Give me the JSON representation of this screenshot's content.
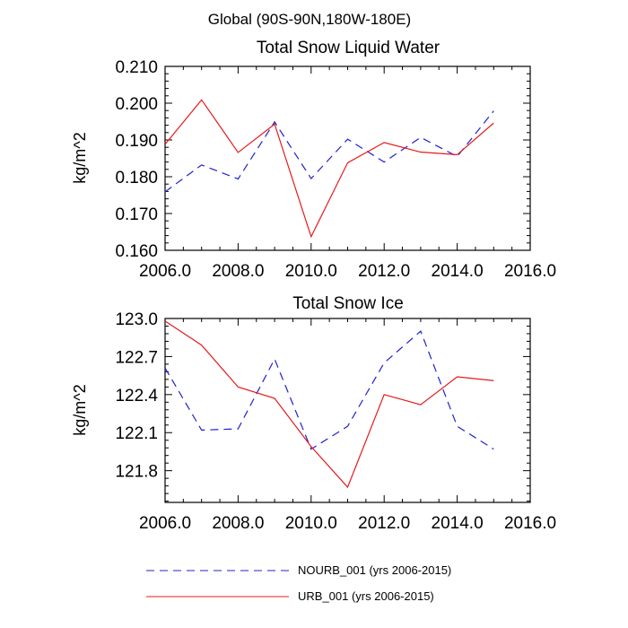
{
  "figure_title": "Global (90S-90N,180W-180E)",
  "colors": {
    "nourb": "#2020d0",
    "urb": "#e41a1c",
    "axis": "#000000"
  },
  "legend": [
    {
      "name": "NOURB_001 (yrs 2006-2015)",
      "style": "dashed",
      "color": "#2020d0"
    },
    {
      "name": "URB_001 (yrs 2006-2015)",
      "style": "solid",
      "color": "#e41a1c"
    }
  ],
  "chart_data": [
    {
      "type": "line",
      "title": "Total Snow Liquid Water",
      "xlabel": "",
      "ylabel": "kg/m^2",
      "xlim": [
        2006,
        2016
      ],
      "ylim": [
        0.16,
        0.21
      ],
      "xticks": [
        2006,
        2008,
        2010,
        2012,
        2014,
        2016
      ],
      "xtick_labels": [
        "2006.0",
        "2008.0",
        "2010.0",
        "2012.0",
        "2014.0",
        "2016.0"
      ],
      "yticks": [
        0.16,
        0.17,
        0.18,
        0.19,
        0.2,
        0.21
      ],
      "ytick_labels": [
        "0.160",
        "0.170",
        "0.180",
        "0.190",
        "0.200",
        "0.210"
      ],
      "x": [
        2006,
        2007,
        2008,
        2009,
        2010,
        2011,
        2012,
        2013,
        2014,
        2015
      ],
      "series": [
        {
          "name": "NOURB_001 (yrs 2006-2015)",
          "style": "dashed",
          "color": "#2020d0",
          "values": [
            0.1759,
            0.1832,
            0.1794,
            0.1949,
            0.1795,
            0.1902,
            0.184,
            0.1907,
            0.1855,
            0.1979
          ]
        },
        {
          "name": "URB_001 (yrs 2006-2015)",
          "style": "solid",
          "color": "#e41a1c",
          "values": [
            0.1888,
            0.2009,
            0.1866,
            0.1943,
            0.1637,
            0.1838,
            0.1893,
            0.1867,
            0.186,
            0.1946
          ]
        }
      ]
    },
    {
      "type": "line",
      "title": "Total Snow Ice",
      "xlabel": "",
      "ylabel": "kg/m^2",
      "xlim": [
        2006,
        2016
      ],
      "ylim": [
        121.55,
        123.0
      ],
      "xticks": [
        2006,
        2008,
        2010,
        2012,
        2014,
        2016
      ],
      "xtick_labels": [
        "2006.0",
        "2008.0",
        "2010.0",
        "2012.0",
        "2014.0",
        "2016.0"
      ],
      "yticks": [
        121.8,
        122.1,
        122.4,
        122.7,
        123.0
      ],
      "ytick_labels": [
        "121.8",
        "122.1",
        "122.4",
        "122.7",
        "123.0"
      ],
      "x": [
        2006,
        2007,
        2008,
        2009,
        2010,
        2011,
        2012,
        2013,
        2014,
        2015
      ],
      "series": [
        {
          "name": "NOURB_001 (yrs 2006-2015)",
          "style": "dashed",
          "color": "#2020d0",
          "values": [
            122.61,
            122.12,
            122.13,
            122.68,
            121.97,
            122.15,
            122.65,
            122.9,
            122.15,
            121.97
          ]
        },
        {
          "name": "URB_001 (yrs 2006-2015)",
          "style": "solid",
          "color": "#e41a1c",
          "values": [
            122.98,
            122.79,
            122.46,
            122.37,
            121.99,
            121.67,
            122.4,
            122.32,
            122.54,
            122.51
          ]
        }
      ]
    }
  ]
}
